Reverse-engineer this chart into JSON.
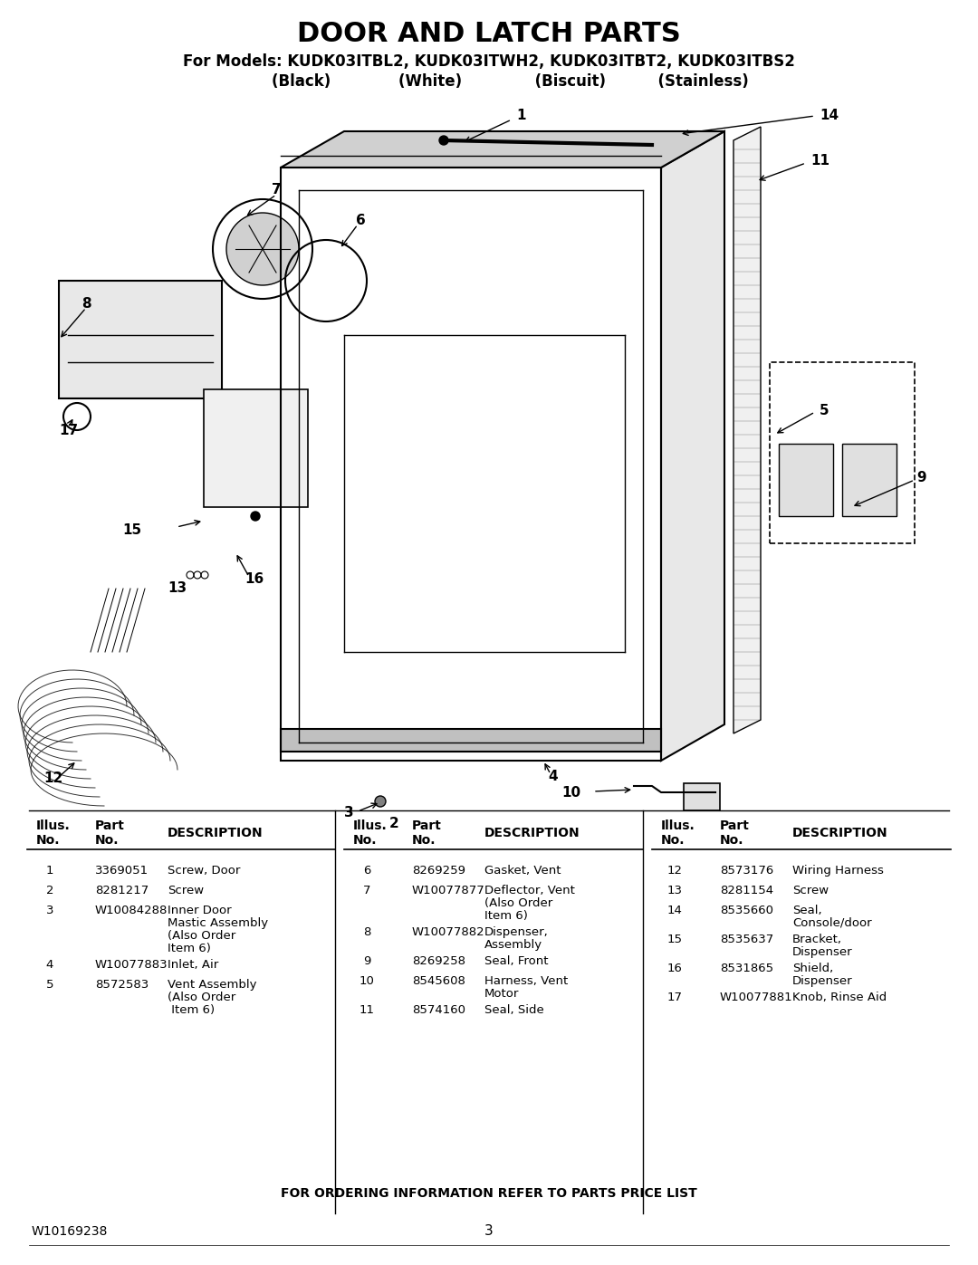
{
  "title": "DOOR AND LATCH PARTS",
  "subtitle_line1": "For Models: KUDK03ITBL2, KUDK03ITWH2, KUDK03ITBT2, KUDK03ITBS2",
  "subtitle_line2": "        (Black)             (White)              (Biscuit)          (Stainless)",
  "image_placeholder": "Door and Latch Parts Diagram",
  "table_header": [
    "Illus.\nNo.",
    "Part\nNo.",
    "DESCRIPTION"
  ],
  "col1_data": [
    [
      "1",
      "3369051",
      "Screw, Door"
    ],
    [
      "2",
      "8281217",
      "Screw"
    ],
    [
      "3",
      "W10084288",
      "Inner Door\nMastic Assembly\n(Also Order\nItem 6)"
    ],
    [
      "4",
      "W10077883",
      "Inlet, Air"
    ],
    [
      "5",
      "8572583",
      "Vent Assembly\n(Also Order\n Item 6)"
    ]
  ],
  "col2_data": [
    [
      "6",
      "8269259",
      "Gasket, Vent"
    ],
    [
      "7",
      "W10077877",
      "Deflector, Vent\n(Also Order\nItem 6)"
    ],
    [
      "8",
      "W10077882",
      "Dispenser,\nAssembly"
    ],
    [
      "9",
      "8269258",
      "Seal, Front"
    ],
    [
      "10",
      "8545608",
      "Harness, Vent\nMotor"
    ],
    [
      "11",
      "8574160",
      "Seal, Side"
    ]
  ],
  "col3_data": [
    [
      "12",
      "8573176",
      "Wiring Harness"
    ],
    [
      "13",
      "8281154",
      "Screw"
    ],
    [
      "14",
      "8535660",
      "Seal,\nConsole/door"
    ],
    [
      "15",
      "8535637",
      "Bracket,\nDispenser"
    ],
    [
      "16",
      "8531865",
      "Shield,\nDispenser"
    ],
    [
      "17",
      "W10077881",
      "Knob, Rinse Aid"
    ]
  ],
  "footer_note": "FOR ORDERING INFORMATION REFER TO PARTS PRICE LIST",
  "doc_number": "W10169238",
  "page_number": "3",
  "bg_color": "#ffffff"
}
